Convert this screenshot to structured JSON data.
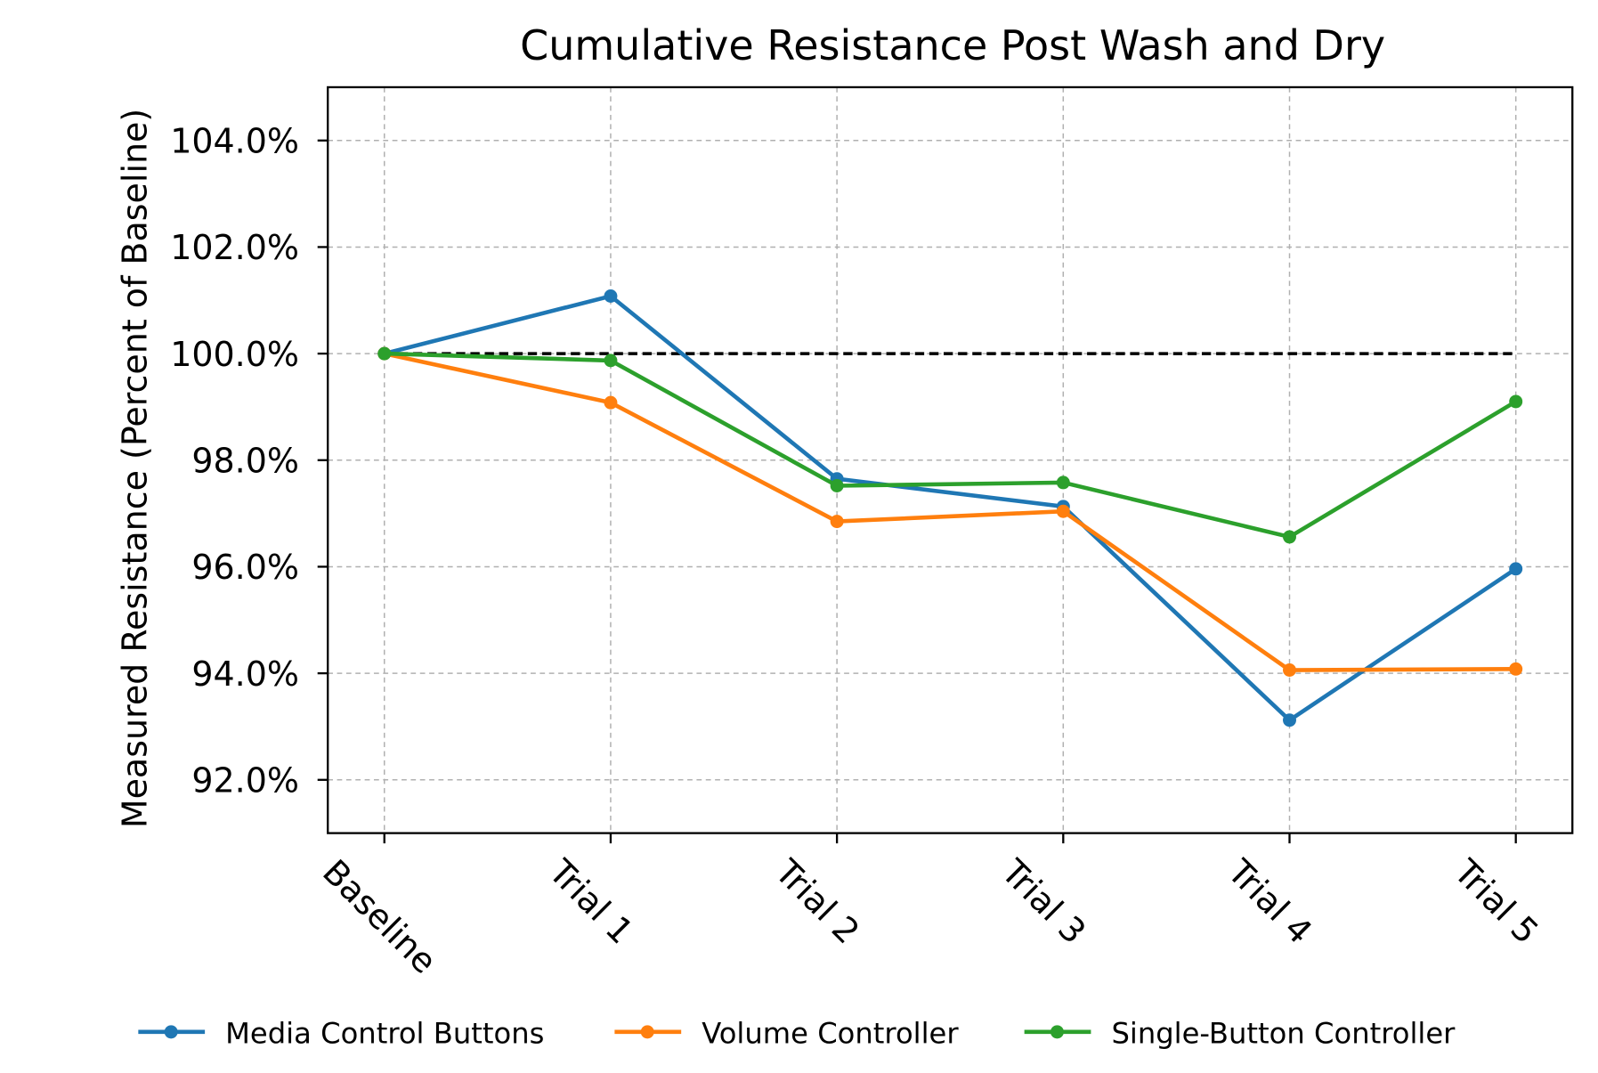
{
  "chart_data": {
    "type": "line",
    "title": "Cumulative Resistance Post Wash and Dry",
    "y_label": "Measured Resistance (Percent of Baseline)",
    "categories": [
      "Baseline",
      "Trial 1",
      "Trial 2",
      "Trial 3",
      "Trial 4",
      "Trial 5"
    ],
    "series": [
      {
        "name": "Media Control Buttons",
        "color": "#1f77b4",
        "values": [
          100,
          101.08,
          97.65,
          97.13,
          93.12,
          95.96
        ]
      },
      {
        "name": "Volume Controller",
        "color": "#ff7f0e",
        "values": [
          100,
          99.08,
          96.85,
          97.04,
          94.06,
          94.08
        ]
      },
      {
        "name": "Single-Button Controller",
        "color": "#2ca02c",
        "values": [
          100,
          99.87,
          97.52,
          97.58,
          96.56,
          99.1
        ]
      }
    ],
    "reference_line": 100,
    "ylim": [
      91,
      105
    ],
    "yticks": [
      {
        "value": 104,
        "label": "104.0%"
      },
      {
        "value": 102,
        "label": "102.0%"
      },
      {
        "value": 100,
        "label": "100.0%"
      },
      {
        "value": 98,
        "label": "98.0%"
      },
      {
        "value": 96,
        "label": "96.0%"
      },
      {
        "value": 94,
        "label": "94.0%"
      },
      {
        "value": 92,
        "label": "92.0%"
      }
    ],
    "grid": true,
    "legend": "bottom"
  }
}
